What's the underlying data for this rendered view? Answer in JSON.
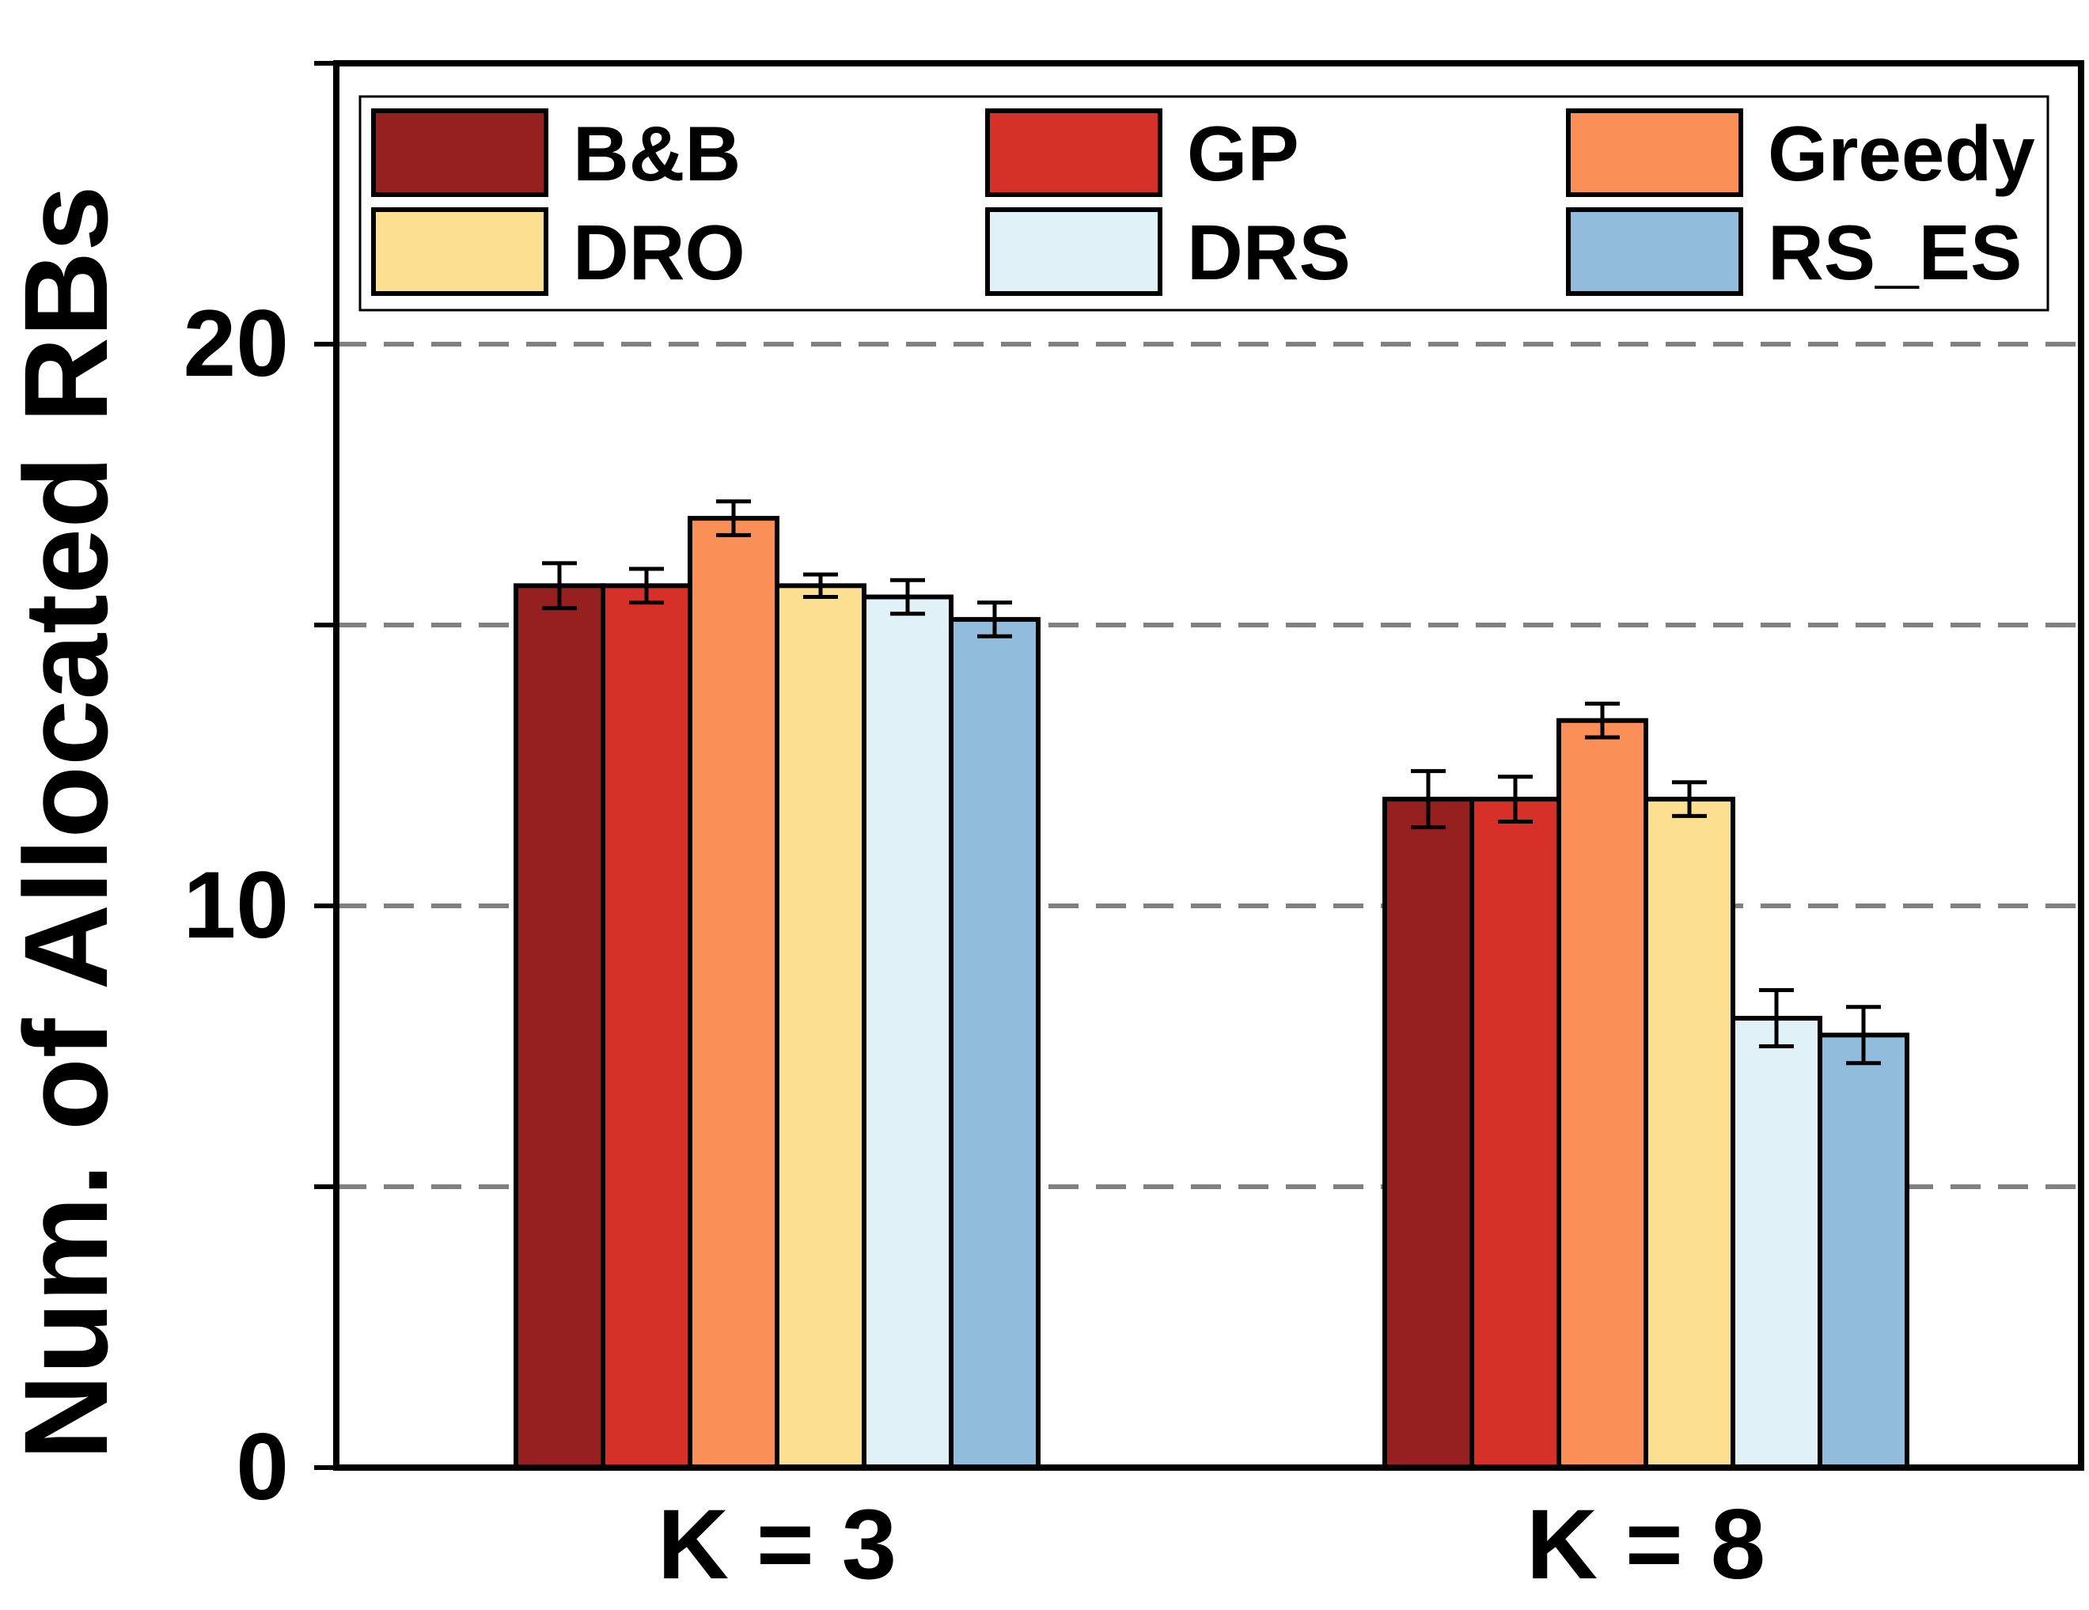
{
  "chart_data": {
    "type": "bar",
    "title": "",
    "xlabel": "",
    "ylabel": "Num. of Allocated RBs",
    "categories": [
      "K = 3",
      "K = 8"
    ],
    "ylim": [
      0,
      25
    ],
    "y_ticks": [
      0,
      10,
      20
    ],
    "y_tick_labels": [
      "0",
      "10",
      "20"
    ],
    "gridlines": [
      5,
      10,
      15,
      20
    ],
    "grid": "dashed-horizontal",
    "legend_position": "top",
    "series": [
      {
        "name": "B&B",
        "color": "#962020",
        "values": [
          15.7,
          11.9
        ],
        "errors": [
          0.4,
          0.5
        ]
      },
      {
        "name": "GP",
        "color": "#d63128",
        "values": [
          15.7,
          11.9
        ],
        "errors": [
          0.3,
          0.4
        ]
      },
      {
        "name": "Greedy",
        "color": "#fa8f58",
        "values": [
          16.9,
          13.3
        ],
        "errors": [
          0.3,
          0.3
        ]
      },
      {
        "name": "DRO",
        "color": "#fddf92",
        "values": [
          15.7,
          11.9
        ],
        "errors": [
          0.2,
          0.3
        ]
      },
      {
        "name": "DRS",
        "color": "#e0f2f8",
        "values": [
          15.5,
          8.0
        ],
        "errors": [
          0.3,
          0.5
        ]
      },
      {
        "name": "RS_ES",
        "color": "#91bcdb",
        "values": [
          15.1,
          7.7
        ],
        "errors": [
          0.3,
          0.5
        ]
      }
    ]
  }
}
